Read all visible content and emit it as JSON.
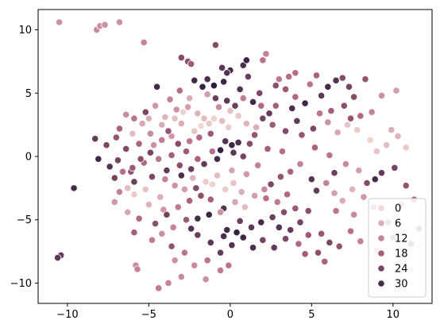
{
  "chart_data": {
    "type": "scatter",
    "title": "",
    "xlabel": "",
    "ylabel": "",
    "xlim": [
      -11.8,
      12.4
    ],
    "ylim": [
      -11.6,
      11.6
    ],
    "xticks": [
      -10,
      -5,
      0,
      5,
      10
    ],
    "yticks": [
      -10,
      -5,
      0,
      5,
      10
    ],
    "grid": false,
    "hue_range": [
      0,
      33
    ],
    "legend": {
      "placement": "lower-right",
      "entries": [
        {
          "label": "0",
          "value": 0
        },
        {
          "label": "6",
          "value": 6
        },
        {
          "label": "12",
          "value": 12
        },
        {
          "label": "18",
          "value": 18
        },
        {
          "label": "24",
          "value": 24
        },
        {
          "label": "30",
          "value": 30
        }
      ]
    },
    "palette": {
      "light": "#f3d9d4",
      "dark": "#2d1e3e"
    },
    "points": [
      [
        -10.5,
        10.6,
        10
      ],
      [
        -8.2,
        10.0,
        11
      ],
      [
        -8.0,
        10.3,
        10
      ],
      [
        -7.7,
        10.4,
        10
      ],
      [
        -6.8,
        10.6,
        10
      ],
      [
        -5.3,
        9.0,
        12
      ],
      [
        -3.0,
        7.8,
        22
      ],
      [
        -2.6,
        7.5,
        21
      ],
      [
        -2.4,
        7.3,
        19
      ],
      [
        -0.9,
        8.8,
        22
      ],
      [
        -0.5,
        7.0,
        27
      ],
      [
        0.0,
        6.8,
        30
      ],
      [
        0.8,
        7.2,
        29
      ],
      [
        1.0,
        7.6,
        31
      ],
      [
        2.0,
        7.6,
        14
      ],
      [
        2.2,
        8.1,
        12
      ],
      [
        3.0,
        6.1,
        13
      ],
      [
        3.6,
        6.3,
        15
      ],
      [
        4.0,
        6.6,
        15
      ],
      [
        6.0,
        5.5,
        30
      ],
      [
        6.5,
        6.0,
        28
      ],
      [
        7.6,
        4.7,
        22
      ],
      [
        7.4,
        3.0,
        20
      ],
      [
        -4.5,
        5.5,
        30
      ],
      [
        -5.2,
        3.5,
        23
      ],
      [
        -3.3,
        3.7,
        10
      ],
      [
        -2.6,
        3.9,
        8
      ],
      [
        -2.0,
        3.4,
        5
      ],
      [
        -1.6,
        3.0,
        4
      ],
      [
        -1.3,
        2.6,
        2
      ],
      [
        -2.2,
        2.0,
        3
      ],
      [
        -3.0,
        2.6,
        6
      ],
      [
        -3.6,
        1.6,
        9
      ],
      [
        -2.5,
        1.2,
        14
      ],
      [
        -1.9,
        1.5,
        16
      ],
      [
        -1.2,
        1.8,
        19
      ],
      [
        -0.5,
        2.8,
        4
      ],
      [
        0.0,
        3.6,
        3
      ],
      [
        0.5,
        3.2,
        2
      ],
      [
        1.0,
        2.6,
        5
      ],
      [
        1.6,
        2.3,
        6
      ],
      [
        -0.3,
        1.2,
        28
      ],
      [
        0.1,
        0.9,
        31
      ],
      [
        0.5,
        1.1,
        29
      ],
      [
        -0.6,
        0.5,
        32
      ],
      [
        -0.8,
        -0.2,
        30
      ],
      [
        0.2,
        0.3,
        27
      ],
      [
        0.8,
        0.0,
        24
      ],
      [
        1.2,
        1.0,
        22
      ],
      [
        1.5,
        1.7,
        20
      ],
      [
        2.0,
        3.0,
        24
      ],
      [
        2.4,
        3.4,
        26
      ],
      [
        2.8,
        4.0,
        18
      ],
      [
        1.4,
        4.3,
        30
      ],
      [
        0.6,
        5.3,
        28
      ],
      [
        -0.4,
        5.9,
        31
      ],
      [
        -1.0,
        5.6,
        33
      ],
      [
        -1.7,
        5.5,
        32
      ],
      [
        -2.2,
        6.0,
        30
      ],
      [
        -1.4,
        6.1,
        29
      ],
      [
        -0.9,
        4.6,
        25
      ],
      [
        -4.2,
        2.5,
        6
      ],
      [
        -4.9,
        1.8,
        11
      ],
      [
        -5.6,
        1.0,
        17
      ],
      [
        -6.4,
        0.6,
        22
      ],
      [
        -6.9,
        -0.3,
        24
      ],
      [
        -7.4,
        -0.8,
        28
      ],
      [
        -6.1,
        -1.2,
        20
      ],
      [
        -5.3,
        -0.5,
        16
      ],
      [
        -4.4,
        -0.2,
        14
      ],
      [
        -3.6,
        0.1,
        18
      ],
      [
        -3.1,
        -0.7,
        21
      ],
      [
        -2.4,
        -1.0,
        25
      ],
      [
        -1.6,
        -0.6,
        26
      ],
      [
        -4.8,
        -1.6,
        23
      ],
      [
        -4.0,
        -1.8,
        12
      ],
      [
        -3.4,
        -2.3,
        10
      ],
      [
        -2.8,
        -2.6,
        8
      ],
      [
        -5.2,
        -2.6,
        3
      ],
      [
        -5.9,
        -3.0,
        2
      ],
      [
        -6.3,
        -2.5,
        4
      ],
      [
        -4.3,
        -3.2,
        6
      ],
      [
        -5.0,
        -3.8,
        5
      ],
      [
        -4.1,
        -4.2,
        9
      ],
      [
        -3.2,
        -4.0,
        13
      ],
      [
        -2.5,
        -3.5,
        17
      ],
      [
        -1.8,
        -3.1,
        21
      ],
      [
        -1.1,
        -2.2,
        1
      ],
      [
        -0.3,
        -2.6,
        2
      ],
      [
        0.2,
        -2.1,
        3
      ],
      [
        0.7,
        -2.8,
        6
      ],
      [
        0.3,
        -3.6,
        7
      ],
      [
        -0.4,
        -4.1,
        28
      ],
      [
        -1.3,
        -4.6,
        31
      ],
      [
        -2.0,
        -4.9,
        30
      ],
      [
        -2.7,
        -5.0,
        19
      ],
      [
        -3.5,
        -5.6,
        12
      ],
      [
        -4.2,
        -6.1,
        10
      ],
      [
        -4.8,
        -6.6,
        13
      ],
      [
        -3.6,
        -7.1,
        20
      ],
      [
        -2.8,
        -7.6,
        14
      ],
      [
        -3.4,
        -8.2,
        10
      ],
      [
        -2.2,
        -8.6,
        11
      ],
      [
        -1.4,
        -8.2,
        14
      ],
      [
        -0.6,
        -7.6,
        26
      ],
      [
        0.1,
        -7.0,
        28
      ],
      [
        0.8,
        -6.4,
        31
      ],
      [
        1.4,
        -7.2,
        29
      ],
      [
        2.0,
        -6.6,
        24
      ],
      [
        1.3,
        -5.6,
        27
      ],
      [
        0.6,
        -5.1,
        25
      ],
      [
        -0.2,
        -5.8,
        30
      ],
      [
        -5.8,
        -8.6,
        11
      ],
      [
        -5.7,
        -8.9,
        12
      ],
      [
        -4.4,
        -10.4,
        13
      ],
      [
        -3.8,
        -10.0,
        12
      ],
      [
        -3.0,
        -9.5,
        11
      ],
      [
        -1.5,
        -9.7,
        10
      ],
      [
        -0.6,
        -9.0,
        13
      ],
      [
        -0.1,
        -8.6,
        14
      ],
      [
        -5.9,
        -6.0,
        18
      ],
      [
        -10.4,
        -7.8,
        26
      ],
      [
        -10.6,
        -8.0,
        27
      ],
      [
        -9.6,
        -2.5,
        30
      ],
      [
        -8.1,
        -0.2,
        31
      ],
      [
        -7.1,
        -1.7,
        24
      ],
      [
        -5.9,
        -2.0,
        25
      ],
      [
        2.5,
        -2.2,
        23
      ],
      [
        3.1,
        -1.6,
        20
      ],
      [
        3.7,
        -1.2,
        17
      ],
      [
        4.3,
        -0.6,
        12
      ],
      [
        2.2,
        -3.3,
        15
      ],
      [
        2.9,
        -3.6,
        13
      ],
      [
        3.5,
        -3.0,
        16
      ],
      [
        4.0,
        -4.1,
        19
      ],
      [
        3.3,
        -4.4,
        22
      ],
      [
        2.6,
        -4.8,
        25
      ],
      [
        3.0,
        -5.6,
        28
      ],
      [
        3.7,
        -5.8,
        26
      ],
      [
        4.3,
        -5.2,
        24
      ],
      [
        4.8,
        -4.3,
        21
      ],
      [
        5.3,
        -2.7,
        26
      ],
      [
        5.9,
        -2.1,
        12
      ],
      [
        6.4,
        -2.9,
        8
      ],
      [
        6.9,
        -3.5,
        6
      ],
      [
        7.5,
        -2.6,
        5
      ],
      [
        8.2,
        -3.2,
        9
      ],
      [
        8.8,
        -4.0,
        14
      ],
      [
        7.6,
        -4.6,
        11
      ],
      [
        6.5,
        -4.3,
        14
      ],
      [
        5.6,
        -6.1,
        20
      ],
      [
        6.1,
        -6.8,
        23
      ],
      [
        4.8,
        -6.2,
        19
      ],
      [
        4.2,
        -6.9,
        16
      ],
      [
        5.4,
        -7.6,
        21
      ],
      [
        8.4,
        -2.1,
        22
      ],
      [
        9.3,
        -1.3,
        26
      ],
      [
        10.1,
        -0.9,
        24
      ],
      [
        10.8,
        -2.3,
        20
      ],
      [
        11.3,
        -3.4,
        17
      ],
      [
        10.5,
        -3.8,
        13
      ],
      [
        9.7,
        -5.2,
        18
      ],
      [
        10.0,
        -6.4,
        15
      ],
      [
        11.1,
        -6.9,
        21
      ],
      [
        11.6,
        -5.7,
        19
      ],
      [
        9.0,
        0.4,
        3
      ],
      [
        9.6,
        0.9,
        4
      ],
      [
        10.3,
        1.6,
        5
      ],
      [
        10.8,
        0.7,
        2
      ],
      [
        9.9,
        2.1,
        6
      ],
      [
        8.6,
        1.3,
        1
      ],
      [
        7.8,
        2.1,
        2
      ],
      [
        7.2,
        2.5,
        3
      ],
      [
        6.6,
        1.9,
        7
      ],
      [
        6.0,
        2.7,
        10
      ],
      [
        5.5,
        3.4,
        14
      ],
      [
        6.2,
        3.6,
        18
      ],
      [
        7.0,
        4.0,
        21
      ],
      [
        8.0,
        3.2,
        16
      ],
      [
        5.1,
        2.2,
        23
      ],
      [
        4.4,
        1.7,
        20
      ],
      [
        5.2,
        0.7,
        17
      ],
      [
        6.1,
        0.1,
        14
      ],
      [
        7.1,
        -0.6,
        11
      ],
      [
        7.9,
        -1.1,
        8
      ],
      [
        6.4,
        -1.3,
        25
      ],
      [
        5.0,
        -1.8,
        28
      ],
      [
        8.9,
        -1.8,
        30
      ],
      [
        8.7,
        3.5,
        12
      ],
      [
        9.3,
        4.8,
        10
      ],
      [
        10.2,
        5.2,
        8
      ],
      [
        4.0,
        4.7,
        16
      ],
      [
        3.4,
        5.3,
        19
      ],
      [
        2.8,
        5.6,
        21
      ],
      [
        1.8,
        5.0,
        23
      ],
      [
        0.3,
        4.0,
        25
      ],
      [
        -0.2,
        4.4,
        27
      ],
      [
        2.3,
        0.6,
        18
      ],
      [
        3.2,
        0.4,
        15
      ],
      [
        1.7,
        -0.7,
        12
      ],
      [
        1.0,
        -1.4,
        9
      ],
      [
        0.1,
        -1.1,
        7
      ],
      [
        -0.8,
        -1.5,
        4
      ],
      [
        -1.5,
        -2.0,
        2
      ],
      [
        -2.3,
        -1.7,
        5
      ],
      [
        -3.8,
        2.0,
        20
      ],
      [
        -3.2,
        1.0,
        22
      ],
      [
        -2.7,
        0.4,
        19
      ],
      [
        -2.0,
        -0.2,
        17
      ],
      [
        -1.1,
        0.4,
        15
      ],
      [
        -4.7,
        0.9,
        10
      ],
      [
        -4.2,
        1.3,
        13
      ],
      [
        -5.4,
        2.6,
        7
      ],
      [
        -6.0,
        1.8,
        4
      ],
      [
        -4.0,
        3.1,
        5
      ],
      [
        -3.4,
        3.0,
        3
      ],
      [
        -2.9,
        3.5,
        1
      ],
      [
        -1.8,
        2.4,
        0
      ],
      [
        -1.0,
        3.0,
        1
      ],
      [
        -0.1,
        2.3,
        2
      ],
      [
        -6.6,
        -1.2,
        15
      ],
      [
        -6.0,
        -0.9,
        19
      ],
      [
        -5.5,
        -0.2,
        21
      ],
      [
        -4.9,
        0.3,
        24
      ],
      [
        -3.9,
        -1.1,
        26
      ],
      [
        -3.0,
        -1.5,
        29
      ],
      [
        -2.1,
        -2.5,
        22
      ],
      [
        -1.2,
        -3.4,
        18
      ],
      [
        -0.6,
        -4.4,
        10
      ],
      [
        0.9,
        -4.0,
        4
      ],
      [
        1.5,
        -3.1,
        8
      ],
      [
        2.1,
        -2.6,
        11
      ],
      [
        -2.5,
        4.6,
        6
      ],
      [
        -1.4,
        4.9,
        8
      ],
      [
        -0.7,
        3.9,
        11
      ],
      [
        0.8,
        4.6,
        13
      ],
      [
        1.9,
        4.0,
        16
      ],
      [
        2.6,
        2.5,
        19
      ],
      [
        3.4,
        2.0,
        22
      ],
      [
        4.1,
        2.8,
        26
      ],
      [
        3.8,
        3.8,
        29
      ],
      [
        4.6,
        4.2,
        31
      ],
      [
        5.6,
        4.8,
        27
      ],
      [
        7.3,
        5.5,
        24
      ],
      [
        8.3,
        6.1,
        20
      ],
      [
        -7.6,
        0.9,
        23
      ],
      [
        -8.3,
        1.4,
        26
      ],
      [
        -7.0,
        1.5,
        20
      ],
      [
        -6.8,
        2.2,
        17
      ],
      [
        -5.9,
        3.0,
        14
      ],
      [
        -2.0,
        -6.2,
        25
      ],
      [
        -1.2,
        -6.8,
        27
      ],
      [
        -0.4,
        -6.3,
        29
      ],
      [
        0.4,
        -6.0,
        32
      ],
      [
        1.9,
        -5.2,
        30
      ],
      [
        2.7,
        -7.2,
        26
      ],
      [
        3.4,
        -6.5,
        23
      ],
      [
        4.6,
        -7.7,
        18
      ],
      [
        5.8,
        -8.3,
        17
      ],
      [
        6.7,
        -7.1,
        20
      ],
      [
        7.4,
        -5.9,
        15
      ],
      [
        8.0,
        -6.7,
        12
      ],
      [
        9.0,
        -7.4,
        10
      ],
      [
        -6.3,
        -4.4,
        7
      ],
      [
        -7.1,
        -3.6,
        9
      ],
      [
        -6.8,
        -2.8,
        12
      ],
      [
        -5.6,
        -4.9,
        16
      ],
      [
        -4.6,
        -5.3,
        21
      ],
      [
        -3.9,
        -4.6,
        24
      ],
      [
        -2.4,
        -5.7,
        28
      ],
      [
        4.9,
        5.7,
        14
      ],
      [
        5.3,
        6.4,
        17
      ],
      [
        6.9,
        6.2,
        22
      ],
      [
        1.1,
        6.3,
        25
      ],
      [
        -0.2,
        6.6,
        28
      ],
      [
        -3.1,
        5.2,
        15
      ],
      [
        -3.7,
        4.5,
        12
      ],
      [
        -4.6,
        4.0,
        9
      ],
      [
        -5.0,
        3.0,
        6
      ],
      [
        -6.4,
        3.3,
        11
      ]
    ]
  }
}
